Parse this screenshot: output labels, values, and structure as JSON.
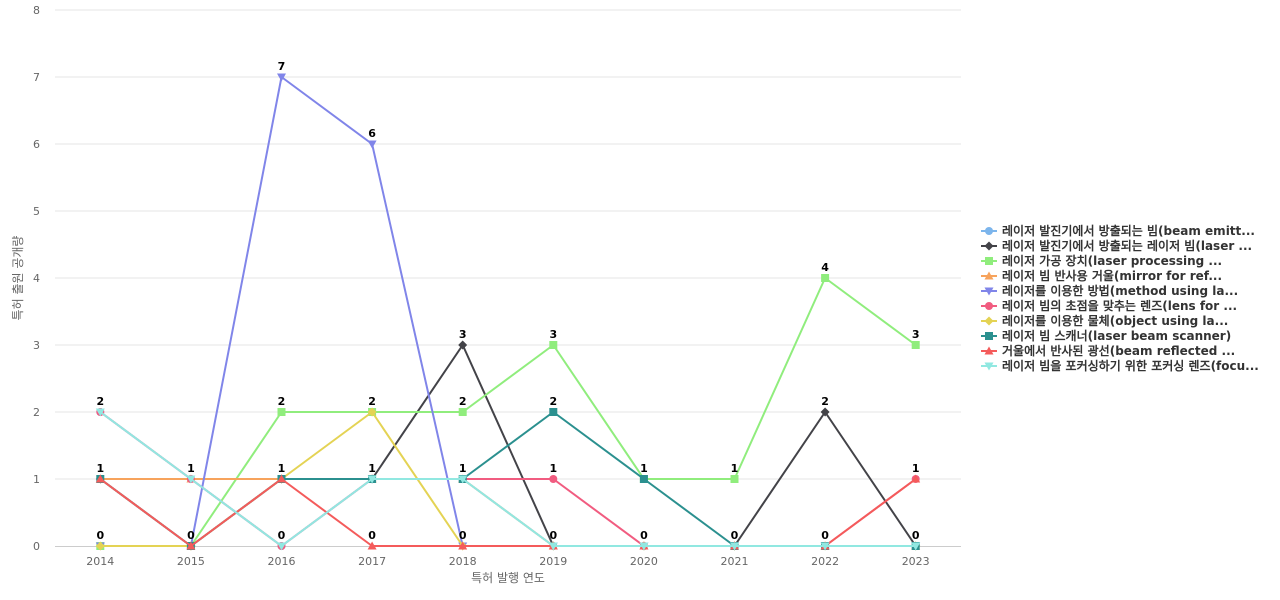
{
  "chart_data": {
    "type": "line",
    "xlabel": "특허 발행 연도",
    "ylabel": "특허 출원 공개량",
    "ylim": [
      0,
      8
    ],
    "yticks": [
      0,
      1,
      2,
      3,
      4,
      5,
      6,
      7,
      8
    ],
    "grid": true,
    "legend_position": "right",
    "categories": [
      "2014",
      "2015",
      "2016",
      "2017",
      "2018",
      "2019",
      "2020",
      "2021",
      "2022",
      "2023"
    ],
    "series": [
      {
        "name": "레이저 발진기에서 방출되는 빔(beam emitt...",
        "color": "#7cb5ec",
        "marker": "circle",
        "values": [
          2,
          1,
          0,
          1,
          1,
          0,
          0,
          0,
          0,
          0
        ]
      },
      {
        "name": "레이저 발진기에서 방출되는 레이저 빔(laser ...",
        "color": "#434348",
        "marker": "diamond",
        "values": [
          1,
          0,
          1,
          1,
          3,
          0,
          0,
          0,
          2,
          0
        ]
      },
      {
        "name": "레이저 가공 장치(laser processing ...",
        "color": "#90ed7d",
        "marker": "square",
        "values": [
          0,
          0,
          2,
          2,
          2,
          3,
          1,
          1,
          4,
          3
        ]
      },
      {
        "name": "레이저 빔 반사용 거울(mirror for ref...",
        "color": "#f7a35c",
        "marker": "triangle",
        "values": [
          1,
          1,
          1,
          1,
          1,
          0,
          0,
          0,
          0,
          0
        ]
      },
      {
        "name": "레이저를 이용한 방법(method using la...",
        "color": "#8085e9",
        "marker": "triangle-down",
        "values": [
          0,
          0,
          7,
          6,
          0,
          0,
          0,
          0,
          0,
          0
        ]
      },
      {
        "name": "레이저 빔의 초점을 맞추는 렌즈(lens for ...",
        "color": "#f15c80",
        "marker": "circle",
        "values": [
          2,
          1,
          0,
          1,
          1,
          1,
          0,
          0,
          0,
          1
        ]
      },
      {
        "name": "레이저를 이용한 물체(object using la...",
        "color": "#e4d354",
        "marker": "diamond",
        "values": [
          0,
          0,
          1,
          2,
          0,
          0,
          0,
          0,
          0,
          0
        ]
      },
      {
        "name": "레이저 빔 스캐너(laser beam scanner)",
        "color": "#2b908f",
        "marker": "square",
        "values": [
          1,
          0,
          1,
          1,
          1,
          2,
          1,
          0,
          0,
          0
        ]
      },
      {
        "name": "거울에서 반사된 광선(beam reflected ...",
        "color": "#f45b5b",
        "marker": "triangle",
        "values": [
          1,
          0,
          1,
          0,
          0,
          0,
          0,
          0,
          0,
          1
        ]
      },
      {
        "name": "레이저 빔을 포커싱하기 위한 포커싱 렌즈(focu...",
        "color": "#91e8e1",
        "marker": "triangle-down",
        "values": [
          2,
          1,
          0,
          1,
          1,
          0,
          0,
          0,
          0,
          0
        ]
      }
    ],
    "data_labels": [
      {
        "x": "2014",
        "value": 2
      },
      {
        "x": "2014",
        "value": 1
      },
      {
        "x": "2014",
        "value": 0
      },
      {
        "x": "2015",
        "value": 1
      },
      {
        "x": "2015",
        "value": 0
      },
      {
        "x": "2016",
        "value": 7
      },
      {
        "x": "2016",
        "value": 2
      },
      {
        "x": "2016",
        "value": 1
      },
      {
        "x": "2016",
        "value": 0
      },
      {
        "x": "2017",
        "value": 6
      },
      {
        "x": "2017",
        "value": 2
      },
      {
        "x": "2017",
        "value": 1
      },
      {
        "x": "2017",
        "value": 0
      },
      {
        "x": "2018",
        "value": 3
      },
      {
        "x": "2018",
        "value": 2
      },
      {
        "x": "2018",
        "value": 1
      },
      {
        "x": "2018",
        "value": 0
      },
      {
        "x": "2019",
        "value": 3
      },
      {
        "x": "2019",
        "value": 2
      },
      {
        "x": "2019",
        "value": 1
      },
      {
        "x": "2019",
        "value": 0
      },
      {
        "x": "2020",
        "value": 1
      },
      {
        "x": "2020",
        "value": 0
      },
      {
        "x": "2021",
        "value": 1
      },
      {
        "x": "2021",
        "value": 0
      },
      {
        "x": "2022",
        "value": 4
      },
      {
        "x": "2022",
        "value": 2
      },
      {
        "x": "2022",
        "value": 0
      },
      {
        "x": "2023",
        "value": 3
      },
      {
        "x": "2023",
        "value": 1
      },
      {
        "x": "2023",
        "value": 0
      }
    ]
  }
}
